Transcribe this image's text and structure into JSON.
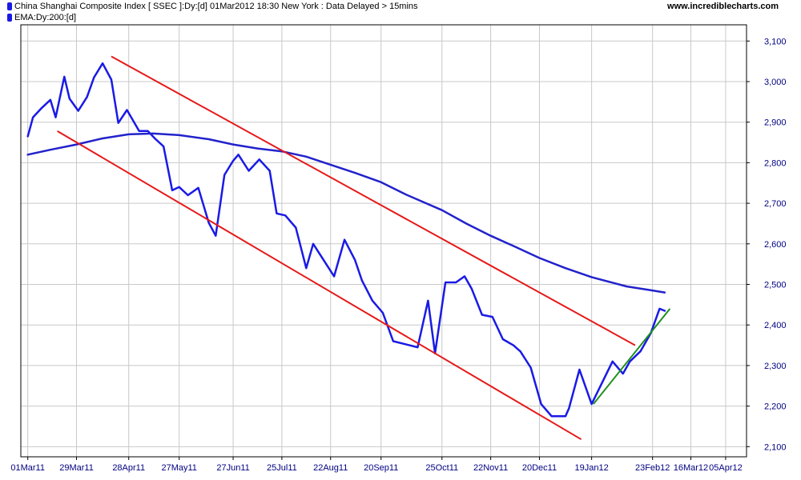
{
  "header": {
    "legend": [
      {
        "label": "China Shanghai Composite Index [ SSEC ]:Dy:[d]  01Mar2012 18:30 New York : Data Delayed > 15mins",
        "color": "#1a1ae6"
      },
      {
        "label": "EMA:Dy:200:[d]",
        "color": "#1a1ae6"
      }
    ],
    "site": "www.incrediblecharts.com"
  },
  "chart_data": {
    "type": "line",
    "grid": true,
    "ylim": [
      2075,
      3140
    ],
    "xlim": [
      "2011-02-25",
      "2012-04-17"
    ],
    "y_ticks": [
      2100,
      2200,
      2300,
      2400,
      2500,
      2600,
      2700,
      2800,
      2900,
      3000,
      3100
    ],
    "y_tick_labels": [
      "2,100",
      "2,200",
      "2,300",
      "2,400",
      "2,500",
      "2,600",
      "2,700",
      "2,800",
      "2,900",
      "3,000",
      "3,100"
    ],
    "x_ticks": [
      "2011-03-01",
      "2011-03-29",
      "2011-04-28",
      "2011-05-27",
      "2011-06-27",
      "2011-07-25",
      "2011-08-22",
      "2011-09-20",
      "2011-10-25",
      "2011-11-22",
      "2011-12-20",
      "2012-01-19",
      "2012-02-23",
      "2012-03-16",
      "2012-04-05"
    ],
    "x_tick_labels": [
      "01Mar11",
      "29Mar11",
      "28Apr11",
      "27May11",
      "27Jun11",
      "25Jul11",
      "22Aug11",
      "20Sep11",
      "25Oct11",
      "22Nov11",
      "20Dec11",
      "19Jan12",
      "23Feb12",
      "16Mar12",
      "05Apr12"
    ],
    "series": [
      {
        "name": "China Shanghai Composite Index [ SSEC ]",
        "color": "#1a1ae6",
        "x": [
          "2011-03-01",
          "2011-03-04",
          "2011-03-09",
          "2011-03-14",
          "2011-03-17",
          "2011-03-22",
          "2011-03-25",
          "2011-03-30",
          "2011-04-04",
          "2011-04-08",
          "2011-04-13",
          "2011-04-18",
          "2011-04-22",
          "2011-04-27",
          "2011-05-04",
          "2011-05-09",
          "2011-05-13",
          "2011-05-18",
          "2011-05-23",
          "2011-05-27",
          "2011-06-01",
          "2011-06-07",
          "2011-06-13",
          "2011-06-17",
          "2011-06-22",
          "2011-06-27",
          "2011-06-30",
          "2011-07-06",
          "2011-07-12",
          "2011-07-18",
          "2011-07-22",
          "2011-07-27",
          "2011-08-02",
          "2011-08-08",
          "2011-08-12",
          "2011-08-18",
          "2011-08-24",
          "2011-08-30",
          "2011-09-05",
          "2011-09-09",
          "2011-09-15",
          "2011-09-21",
          "2011-09-27",
          "2011-10-11",
          "2011-10-17",
          "2011-10-21",
          "2011-10-27",
          "2011-11-02",
          "2011-11-07",
          "2011-11-11",
          "2011-11-17",
          "2011-11-23",
          "2011-11-29",
          "2011-12-05",
          "2011-12-09",
          "2011-12-15",
          "2011-12-21",
          "2011-12-27",
          "2012-01-04",
          "2012-01-06",
          "2012-01-12",
          "2012-01-19",
          "2012-01-31",
          "2012-02-06",
          "2012-02-10",
          "2012-02-16",
          "2012-02-22",
          "2012-02-27",
          "2012-03-01"
        ],
        "values": [
          2865,
          2912,
          2935,
          2955,
          2912,
          3012,
          2958,
          2928,
          2962,
          3010,
          3045,
          3005,
          2898,
          2930,
          2878,
          2878,
          2860,
          2840,
          2732,
          2740,
          2720,
          2738,
          2652,
          2620,
          2770,
          2805,
          2820,
          2780,
          2808,
          2780,
          2675,
          2670,
          2640,
          2540,
          2600,
          2560,
          2520,
          2610,
          2560,
          2510,
          2460,
          2430,
          2360,
          2345,
          2460,
          2330,
          2505,
          2505,
          2520,
          2490,
          2425,
          2420,
          2365,
          2350,
          2335,
          2295,
          2205,
          2175,
          2175,
          2195,
          2290,
          2205,
          2310,
          2280,
          2310,
          2335,
          2380,
          2440,
          2435
        ]
      },
      {
        "name": "EMA:Dy:200:[d]",
        "color": "#2222cc",
        "x": [
          "2011-03-01",
          "2011-03-14",
          "2011-03-29",
          "2011-04-13",
          "2011-04-28",
          "2011-05-12",
          "2011-05-27",
          "2011-06-13",
          "2011-06-27",
          "2011-07-11",
          "2011-07-25",
          "2011-08-08",
          "2011-08-22",
          "2011-09-05",
          "2011-09-20",
          "2011-10-04",
          "2011-10-25",
          "2011-11-08",
          "2011-11-22",
          "2011-12-06",
          "2011-12-20",
          "2012-01-04",
          "2012-01-19",
          "2012-02-08",
          "2012-02-23",
          "2012-03-01"
        ],
        "values": [
          2820,
          2832,
          2845,
          2860,
          2870,
          2872,
          2868,
          2858,
          2845,
          2835,
          2828,
          2815,
          2795,
          2775,
          2752,
          2722,
          2683,
          2650,
          2620,
          2593,
          2565,
          2540,
          2518,
          2495,
          2485,
          2480
        ]
      }
    ],
    "trendlines": [
      {
        "color": "#e61919",
        "x": [
          "2011-04-18",
          "2012-02-13"
        ],
        "y": [
          3062,
          2350
        ]
      },
      {
        "color": "#e61919",
        "x": [
          "2011-03-18",
          "2012-01-13"
        ],
        "y": [
          2878,
          2118
        ]
      },
      {
        "color": "#1f8f1f",
        "x": [
          "2012-01-20",
          "2012-03-04"
        ],
        "y": [
          2205,
          2440
        ]
      }
    ]
  }
}
